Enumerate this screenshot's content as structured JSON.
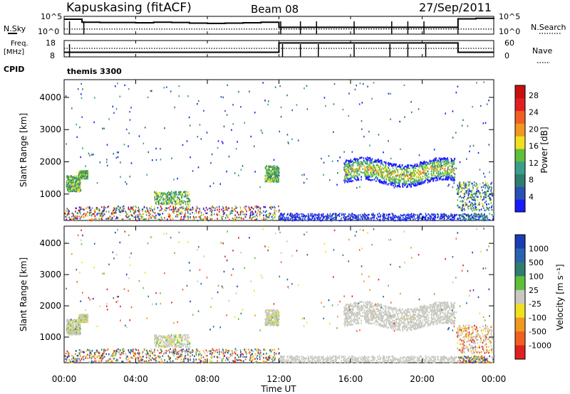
{
  "header": {
    "station": "Kapuskasing (fitACF)",
    "beam": "Beam 08",
    "date": "27/Sep/2011"
  },
  "labels": {
    "nsky": "N.Sky",
    "nsearch": "N.Search",
    "freq_line1": "Freq.",
    "freq_line2": "[MHz]",
    "nave": "Nave",
    "cpid": "CPID",
    "cpid_value": "themis 3300",
    "ylabel": "Slant Range [km]",
    "xlabel": "Time UT",
    "power_label": "Power [dB]",
    "velocity_label": "Velocity [m s⁻¹]"
  },
  "colors": {
    "power_scale": [
      "#1a1aff",
      "#2a52b4",
      "#2e7d6e",
      "#3a9f8a",
      "#5fbf3a",
      "#f0e020",
      "#f09820",
      "#f06020",
      "#e02020",
      "#c81010"
    ],
    "velocity_scale": [
      "#1a3cb4",
      "#2a62b0",
      "#2e7d6e",
      "#5fbf3a",
      "#c8c8c0",
      "#f0e020",
      "#f09820",
      "#f06020",
      "#e02020"
    ],
    "ground_scatter": "#c8c8c0"
  },
  "chart_data": [
    {
      "type": "line",
      "name": "noise-panel",
      "left_ticks": [
        "10^5",
        "10^0"
      ],
      "right_ticks": [
        "10^5",
        "10^0"
      ],
      "x": [
        0,
        1,
        2,
        3,
        4,
        5,
        6,
        7,
        8,
        9,
        10,
        11,
        12,
        13,
        14,
        15,
        16,
        17,
        18,
        19,
        20,
        21,
        22,
        23,
        24
      ],
      "series": [
        {
          "values": [
            4.5,
            3.5,
            3.4,
            3.4,
            3.3,
            3.5,
            3.4,
            3.2,
            3.1,
            3.2,
            3.3,
            3.5,
            1.8,
            1.8,
            1.8,
            1.8,
            1.8,
            1.8,
            1.8,
            1.8,
            1.8,
            1.8,
            4.6,
            4.8,
            5.0
          ]
        },
        {
          "values": [
            1.2,
            1.2,
            1.2,
            1.2,
            1.2,
            1.2,
            1.2,
            1.2,
            1.2,
            1.2,
            1.2,
            1.2,
            1.2,
            1.2,
            1.2,
            1.2,
            1.2,
            1.2,
            1.2,
            1.2,
            1.2,
            1.2,
            1.2,
            1.2,
            1.2
          ]
        }
      ]
    },
    {
      "type": "line",
      "name": "freq-nave-panel",
      "left_ticks": [
        "18",
        "8"
      ],
      "right_ticks": [
        "60",
        "0"
      ],
      "x": [
        0,
        12,
        22,
        24
      ],
      "series": [
        {
          "values": [
            10.5,
            17.8,
            10.5,
            10.5
          ]
        },
        {
          "values": [
            30,
            30,
            30,
            30
          ]
        }
      ]
    },
    {
      "type": "heatmap",
      "name": "power",
      "x_ticks": [
        "00:00",
        "04:00",
        "08:00",
        "12:00",
        "16:00",
        "20:00",
        "00:00"
      ],
      "y_ticks": [
        1000,
        2000,
        3000,
        4000
      ],
      "ylabel": "Slant Range [km]",
      "xlim": [
        0,
        24
      ],
      "ylim": [
        180,
        4550
      ],
      "colorbar": {
        "label": "Power [dB]",
        "ticks": [
          "4",
          "8",
          "12",
          "16",
          "20",
          "24",
          "28"
        ],
        "range": [
          0,
          30
        ]
      }
    },
    {
      "type": "heatmap",
      "name": "velocity",
      "x_ticks": [
        "00:00",
        "04:00",
        "08:00",
        "12:00",
        "16:00",
        "20:00",
        "00:00"
      ],
      "y_ticks": [
        1000,
        2000,
        3000,
        4000
      ],
      "ylabel": "Slant Range [km]",
      "xlabel": "Time UT",
      "xlim": [
        0,
        24
      ],
      "ylim": [
        180,
        4550
      ],
      "colorbar": {
        "label": "Velocity [m s⁻¹]",
        "ticks": [
          "1000",
          "500",
          "100",
          "25",
          "-25",
          "-100",
          "-500",
          "-1000"
        ]
      }
    }
  ]
}
